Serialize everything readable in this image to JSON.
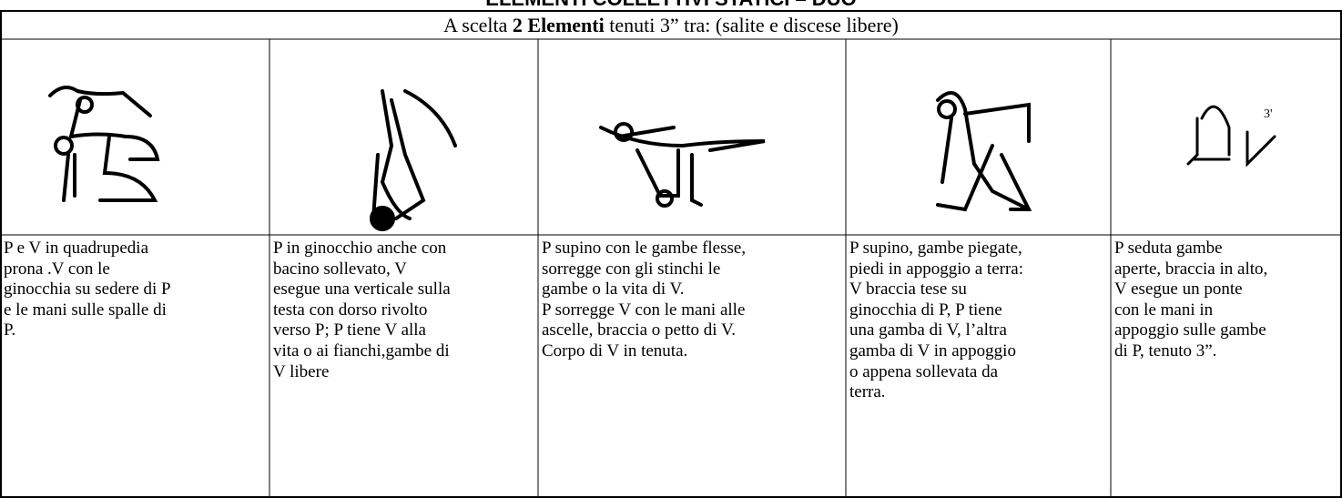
{
  "title": "ELEMENTI COLLETTIVI STATICI – DUO",
  "header": {
    "before": "A scelta ",
    "bold": "2 Elementi",
    "after": " tenuti 3” tra: (salite e discese libere)"
  },
  "cells": [
    {
      "lines": [
        "P e V in quadrupedia",
        "prona .V con le",
        "ginocchia su sedere di P",
        "e  le mani sulle  spalle di",
        "P."
      ]
    },
    {
      "lines": [
        "P in ginocchio anche con",
        "bacino sollevato, V",
        "esegue una verticale sulla",
        "testa con dorso rivolto",
        "verso P; P tiene V alla",
        "vita o ai fianchi,gambe di",
        "V libere"
      ]
    },
    {
      "lines": [
        "P supino con le gambe flesse,",
        "sorregge con gli stinchi le",
        "gambe o la vita di V.",
        "P sorregge V con le mani alle",
        "ascelle, braccia o petto di V.",
        "Corpo di V in tenuta."
      ]
    },
    {
      "lines": [
        "P supino, gambe piegate,",
        "piedi in appoggio a terra:",
        "V braccia tese su",
        "ginocchia di P, P tiene",
        "una gamba di V, l’altra",
        "gamba di V in appoggio",
        "o appena sollevata da",
        "terra."
      ]
    },
    {
      "lines": [
        "P seduta gambe",
        "aperte, braccia in alto,",
        "V esegue un ponte",
        "con le mani in",
        "appoggio sulle gambe",
        "di P, tenuto 3”."
      ],
      "figure_label": "3'"
    }
  ]
}
